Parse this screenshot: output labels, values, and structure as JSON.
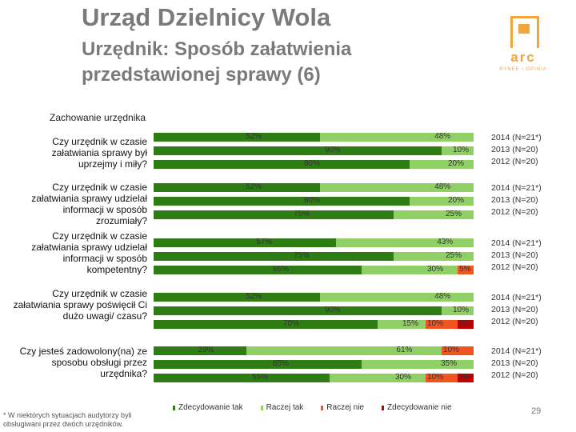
{
  "header": {
    "title": "Urząd Dzielnicy Wola",
    "subtitle": "Urzędnik: Sposób załatwienia przedstawionej sprawy (6)"
  },
  "logo": {
    "text": "arc",
    "subtext": "RYNEK i OPINIA"
  },
  "chart_data": {
    "type": "bar",
    "orientation": "horizontal-stacked-100",
    "title": "Zachowanie urzędnika",
    "series_names": [
      "Zdecydowanie tak",
      "Raczej tak",
      "Raczej nie",
      "Zdecydowanie nie"
    ],
    "colors": [
      "#2e7d14",
      "#8fcf66",
      "#f05520",
      "#c00000"
    ],
    "questions": [
      {
        "label": "Czy urzędnik w czasie załatwiania sprawy był uprzejmy i miły?",
        "years": [
          "2014 (N=21*)",
          "2013 (N=20)",
          "2012 (N=20)"
        ],
        "values": [
          [
            52,
            48,
            0,
            0
          ],
          [
            90,
            10,
            0,
            0
          ],
          [
            80,
            20,
            0,
            0
          ]
        ],
        "labels": [
          [
            "52%",
            "48%",
            "",
            ""
          ],
          [
            "90%",
            "10%",
            "",
            ""
          ],
          [
            "80%",
            "20%",
            "",
            ""
          ]
        ]
      },
      {
        "label": "Czy urzędnik w czasie załatwiania sprawy udzielał informacji w sposób zrozumiały?",
        "years": [
          "2014 (N=21*)",
          "2013 (N=20)",
          "2012 (N=20)"
        ],
        "values": [
          [
            52,
            48,
            0,
            0
          ],
          [
            80,
            20,
            0,
            0
          ],
          [
            75,
            25,
            0,
            0
          ]
        ],
        "labels": [
          [
            "52%",
            "48%",
            "",
            ""
          ],
          [
            "80%",
            "20%",
            "",
            ""
          ],
          [
            "75%",
            "25%",
            "",
            ""
          ]
        ]
      },
      {
        "label": "Czy urzędnik w czasie załatwiania sprawy udzielał informacji w sposób kompetentny?",
        "years": [
          "2014 (N=21*)",
          "2013 (N=20)",
          "2012 (N=20)"
        ],
        "values": [
          [
            57,
            43,
            0,
            0
          ],
          [
            75,
            25,
            0,
            0
          ],
          [
            65,
            30,
            5,
            0
          ]
        ],
        "labels": [
          [
            "57%",
            "43%",
            "",
            ""
          ],
          [
            "75%",
            "25%",
            "",
            ""
          ],
          [
            "65%",
            "30%",
            "5%",
            ""
          ]
        ]
      },
      {
        "label": "Czy urzędnik w czasie załatwiania sprawy poświęcił Ci dużo uwagi/ czasu?",
        "years": [
          "2014 (N=21*)",
          "2013 (N=20)",
          "2012 (N=20)"
        ],
        "values": [
          [
            52,
            48,
            0,
            0
          ],
          [
            90,
            10,
            0,
            0
          ],
          [
            70,
            15,
            10,
            5
          ]
        ],
        "labels": [
          [
            "52%",
            "48%",
            "",
            ""
          ],
          [
            "90%",
            "10%",
            "",
            ""
          ],
          [
            "70%",
            "15%",
            "10%",
            "5%"
          ]
        ]
      },
      {
        "label": "Czy jesteś zadowolony(na) ze sposobu obsługi przez urzędnika?",
        "years": [
          "2014 (N=21*)",
          "2013 (N=20)",
          "2012 (N=20)"
        ],
        "values": [
          [
            29,
            61,
            10,
            0
          ],
          [
            65,
            35,
            0,
            0
          ],
          [
            55,
            30,
            10,
            5
          ]
        ],
        "labels": [
          [
            "29%",
            "61%",
            "10%",
            ""
          ],
          [
            "65%",
            "35%",
            "",
            ""
          ],
          [
            "55%",
            "30%",
            "10%",
            "5%"
          ]
        ]
      }
    ]
  },
  "footnote": "* W niektórych sytuacjach audytorzy byli obsługiwani przez dwóch urzędników.",
  "page_number": "29"
}
